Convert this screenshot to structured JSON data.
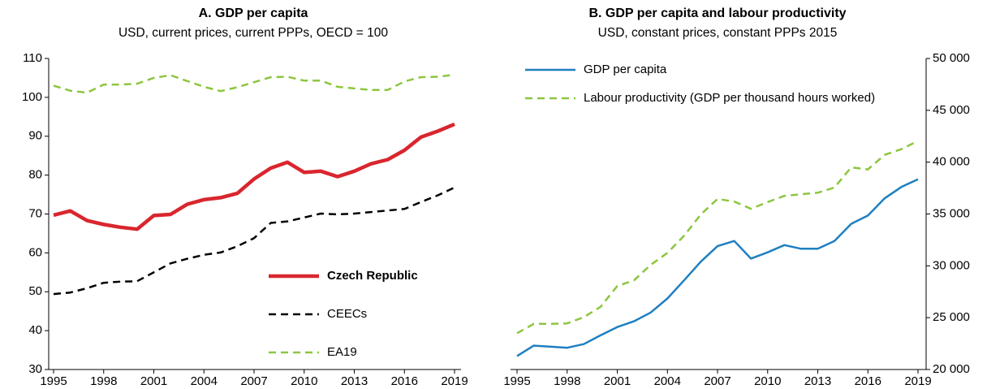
{
  "chart_data": [
    {
      "type": "line",
      "title": "A. GDP per capita",
      "subtitle": "USD, current prices, current PPPs, OECD = 100",
      "x": [
        1995,
        1996,
        1997,
        1998,
        1999,
        2000,
        2001,
        2002,
        2003,
        2004,
        2005,
        2006,
        2007,
        2008,
        2009,
        2010,
        2011,
        2012,
        2013,
        2014,
        2015,
        2016,
        2017,
        2018,
        2019
      ],
      "xlim": [
        1995,
        2019
      ],
      "xticks": [
        1995,
        1998,
        2001,
        2004,
        2007,
        2010,
        2013,
        2016,
        2019
      ],
      "ylim": [
        30,
        110
      ],
      "yticks": [
        30,
        40,
        50,
        60,
        70,
        80,
        90,
        100,
        110
      ],
      "y_axis_side": "left",
      "legend": "lower right",
      "series": [
        {
          "name": "Czech Republic",
          "color": "#d9262e",
          "style": "solid",
          "width": 4.5,
          "values": [
            69.7,
            70.8,
            68.3,
            67.3,
            66.6,
            66.1,
            69.6,
            69.9,
            72.5,
            73.7,
            74.2,
            75.3,
            79.0,
            81.8,
            83.3,
            80.7,
            81.0,
            79.6,
            81.0,
            82.9,
            84.0,
            86.4,
            89.8,
            91.3,
            93.1
          ]
        },
        {
          "name": "CEECs",
          "color": "#000000",
          "style": "dashed",
          "width": 2.5,
          "values": [
            49.4,
            49.8,
            50.9,
            52.3,
            52.6,
            52.7,
            55.0,
            57.3,
            58.5,
            59.5,
            60.1,
            61.7,
            63.8,
            67.7,
            68.1,
            69.1,
            70.1,
            69.9,
            70.1,
            70.5,
            70.9,
            71.3,
            73.1,
            74.8,
            76.8
          ]
        },
        {
          "name": "EA19",
          "color": "#8cc63f",
          "style": "dashed",
          "width": 2.5,
          "values": [
            103.0,
            101.7,
            101.2,
            103.3,
            103.3,
            103.5,
            105.0,
            105.7,
            104.2,
            102.7,
            101.6,
            102.6,
            103.9,
            105.2,
            105.3,
            104.3,
            104.3,
            102.7,
            102.3,
            101.9,
            101.9,
            104.1,
            105.2,
            105.3,
            105.8
          ]
        }
      ]
    },
    {
      "type": "line",
      "title": "B. GDP per capita and labour productivity",
      "subtitle": "USD, constant prices, constant PPPs 2015",
      "x": [
        1995,
        1996,
        1997,
        1998,
        1999,
        2000,
        2001,
        2002,
        2003,
        2004,
        2005,
        2006,
        2007,
        2008,
        2009,
        2010,
        2011,
        2012,
        2013,
        2014,
        2015,
        2016,
        2017,
        2018,
        2019
      ],
      "xlim": [
        1995,
        2019
      ],
      "xticks": [
        1995,
        1998,
        2001,
        2004,
        2007,
        2010,
        2013,
        2016,
        2019
      ],
      "ylim": [
        20000,
        50000
      ],
      "yticks": [
        {
          "value": 20000,
          "label": "20 000"
        },
        {
          "value": 25000,
          "label": "25 000"
        },
        {
          "value": 30000,
          "label": "30 000"
        },
        {
          "value": 35000,
          "label": "35 000"
        },
        {
          "value": 40000,
          "label": "40 000"
        },
        {
          "value": 45000,
          "label": "45 000"
        },
        {
          "value": 50000,
          "label": "50 000"
        }
      ],
      "y_axis_side": "right",
      "legend": "upper left",
      "series": [
        {
          "name": "GDP per capita",
          "color": "#1f7fc1",
          "style": "solid",
          "width": 2.5,
          "values": [
            21300,
            22300,
            22200,
            22100,
            22450,
            23300,
            24100,
            24650,
            25500,
            26850,
            28600,
            30400,
            31900,
            32400,
            30700,
            31300,
            32000,
            31650,
            31650,
            32400,
            34050,
            34850,
            36500,
            37600,
            38350
          ]
        },
        {
          "name": "Labour productivity (GDP per thousand hours worked)",
          "color": "#8cc63f",
          "style": "dashed",
          "width": 2.5,
          "values": [
            23500,
            24400,
            24400,
            24450,
            25050,
            26050,
            28050,
            28600,
            30100,
            31250,
            32900,
            34950,
            36450,
            36200,
            35500,
            36150,
            36750,
            36900,
            37050,
            37550,
            39500,
            39300,
            40700,
            41250,
            42050
          ]
        }
      ]
    }
  ]
}
